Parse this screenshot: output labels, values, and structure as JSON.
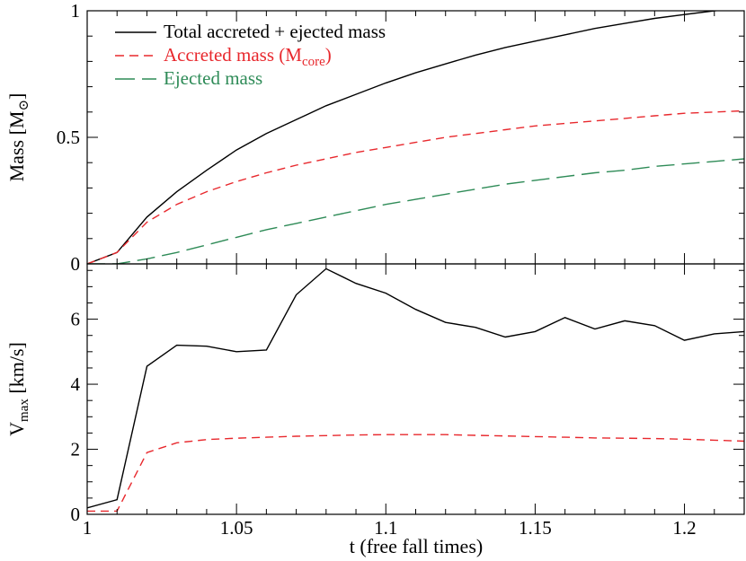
{
  "chart_data": [
    {
      "type": "line",
      "title": "",
      "xlabel": "",
      "ylabel": "Mass [M⊙]",
      "ylabel_main": "Mass [M",
      "ylabel_sub": "⊙",
      "ylabel_end": "]",
      "xlim": [
        1.0,
        1.22
      ],
      "ylim": [
        0,
        1
      ],
      "yticks": [
        {
          "v": 0,
          "label": "0"
        },
        {
          "v": 0.5,
          "label": "0.5"
        },
        {
          "v": 1,
          "label": "1"
        }
      ],
      "xticks": [
        1.0,
        1.05,
        1.1,
        1.15,
        1.2
      ],
      "legend_position": "top-left",
      "series": [
        {
          "name": "Total accreted + ejected mass",
          "color": "#000000",
          "dash": "solid",
          "x": [
            1.0,
            1.01,
            1.02,
            1.03,
            1.04,
            1.05,
            1.06,
            1.07,
            1.08,
            1.09,
            1.1,
            1.11,
            1.12,
            1.13,
            1.14,
            1.15,
            1.16,
            1.17,
            1.18,
            1.19,
            1.2,
            1.21,
            1.22
          ],
          "y": [
            0.0,
            0.045,
            0.185,
            0.285,
            0.37,
            0.45,
            0.515,
            0.57,
            0.625,
            0.67,
            0.715,
            0.755,
            0.79,
            0.825,
            0.855,
            0.88,
            0.905,
            0.93,
            0.95,
            0.97,
            0.985,
            1.0,
            1.01
          ]
        },
        {
          "name": "Accreted mass (M",
          "name_sub": "core",
          "name_end": ")",
          "color": "#e8282d",
          "dash": "short",
          "x": [
            1.0,
            1.01,
            1.02,
            1.03,
            1.04,
            1.05,
            1.06,
            1.07,
            1.08,
            1.09,
            1.1,
            1.11,
            1.12,
            1.13,
            1.14,
            1.15,
            1.16,
            1.17,
            1.18,
            1.19,
            1.2,
            1.21,
            1.22
          ],
          "y": [
            0.0,
            0.045,
            0.165,
            0.235,
            0.285,
            0.325,
            0.36,
            0.39,
            0.415,
            0.44,
            0.46,
            0.48,
            0.5,
            0.515,
            0.53,
            0.545,
            0.555,
            0.565,
            0.575,
            0.585,
            0.595,
            0.6,
            0.605
          ]
        },
        {
          "name": "Ejected mass",
          "color": "#2e8b57",
          "dash": "long",
          "x": [
            1.0,
            1.01,
            1.02,
            1.03,
            1.04,
            1.05,
            1.06,
            1.07,
            1.08,
            1.09,
            1.1,
            1.11,
            1.12,
            1.13,
            1.14,
            1.15,
            1.16,
            1.17,
            1.18,
            1.19,
            1.2,
            1.21,
            1.22
          ],
          "y": [
            0.0,
            0.0,
            0.02,
            0.045,
            0.075,
            0.105,
            0.135,
            0.16,
            0.185,
            0.21,
            0.235,
            0.255,
            0.275,
            0.295,
            0.315,
            0.33,
            0.345,
            0.36,
            0.37,
            0.385,
            0.395,
            0.405,
            0.415
          ]
        }
      ]
    },
    {
      "type": "line",
      "title": "",
      "xlabel": "t (free fall times)",
      "ylabel": "Vmax [km/s]",
      "ylabel_main": "V",
      "ylabel_sub": "max",
      "ylabel_end": " [km/s]",
      "xlim": [
        1.0,
        1.22
      ],
      "ylim": [
        0,
        7.7
      ],
      "yticks": [
        {
          "v": 0,
          "label": "0"
        },
        {
          "v": 2,
          "label": "2"
        },
        {
          "v": 4,
          "label": "4"
        },
        {
          "v": 6,
          "label": "6"
        }
      ],
      "xticks": [
        {
          "v": 1.0,
          "label": "1"
        },
        {
          "v": 1.05,
          "label": "1.05"
        },
        {
          "v": 1.1,
          "label": "1.1"
        },
        {
          "v": 1.15,
          "label": "1.15"
        },
        {
          "v": 1.2,
          "label": "1.2"
        }
      ],
      "series": [
        {
          "color": "#000000",
          "dash": "solid",
          "x": [
            1.0,
            1.01,
            1.02,
            1.03,
            1.04,
            1.05,
            1.06,
            1.07,
            1.08,
            1.09,
            1.1,
            1.11,
            1.12,
            1.13,
            1.14,
            1.15,
            1.16,
            1.17,
            1.18,
            1.19,
            1.2,
            1.21,
            1.22
          ],
          "y": [
            0.2,
            0.45,
            4.55,
            5.2,
            5.17,
            5.0,
            5.05,
            6.75,
            7.55,
            7.1,
            6.8,
            6.3,
            5.9,
            5.75,
            5.45,
            5.62,
            6.05,
            5.7,
            5.95,
            5.8,
            5.35,
            5.55,
            5.62
          ]
        },
        {
          "color": "#e8282d",
          "dash": "short",
          "x": [
            1.0,
            1.01,
            1.02,
            1.03,
            1.04,
            1.05,
            1.06,
            1.07,
            1.08,
            1.09,
            1.1,
            1.11,
            1.12,
            1.13,
            1.14,
            1.15,
            1.16,
            1.17,
            1.18,
            1.19,
            1.2,
            1.21,
            1.22
          ],
          "y": [
            0.1,
            0.1,
            1.9,
            2.2,
            2.3,
            2.34,
            2.37,
            2.4,
            2.42,
            2.44,
            2.45,
            2.45,
            2.45,
            2.43,
            2.41,
            2.39,
            2.37,
            2.35,
            2.34,
            2.33,
            2.31,
            2.28,
            2.25
          ]
        }
      ]
    }
  ]
}
